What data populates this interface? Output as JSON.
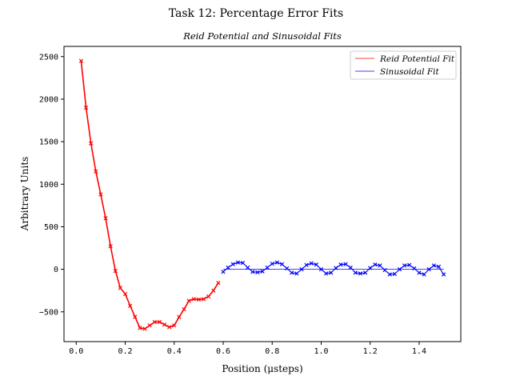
{
  "suptitle": "Task 12: Percentage Error Fits",
  "chart_data": {
    "type": "line",
    "title": "Reid Potential and Sinusoidal Fits",
    "xlabel": "Position (μsteps)",
    "ylabel": "Arbitrary Units",
    "xlim": [
      -0.05,
      1.57
    ],
    "ylim": [
      -850,
      2620
    ],
    "xticks": [
      0.0,
      0.2,
      0.4,
      0.6,
      0.8,
      1.0,
      1.2,
      1.4
    ],
    "xtick_labels": [
      "0.0",
      "0.2",
      "0.4",
      "0.6",
      "0.8",
      "1.0",
      "1.2",
      "1.4"
    ],
    "yticks": [
      -500,
      0,
      500,
      1000,
      1500,
      2000,
      2500
    ],
    "ytick_labels": [
      "−500",
      "0",
      "500",
      "1000",
      "1500",
      "2000",
      "2500"
    ],
    "grid": false,
    "legend_position": "top-right",
    "legend": [
      "Reid Potential Fit",
      "Sinusoidal Fit"
    ],
    "series": [
      {
        "name": "Reid Potential Fit",
        "color": "#ff0000",
        "marker": "x",
        "x": [
          0.02,
          0.04,
          0.06,
          0.08,
          0.1,
          0.12,
          0.14,
          0.16,
          0.18,
          0.2,
          0.22,
          0.24,
          0.26,
          0.28,
          0.3,
          0.32,
          0.34,
          0.36,
          0.38,
          0.4,
          0.42,
          0.44,
          0.46,
          0.48,
          0.5,
          0.52,
          0.54,
          0.56,
          0.58
        ],
        "y": [
          2450,
          1900,
          1480,
          1150,
          880,
          600,
          270,
          -20,
          -220,
          -290,
          -430,
          -560,
          -690,
          -700,
          -660,
          -620,
          -620,
          -650,
          -680,
          -660,
          -560,
          -470,
          -370,
          -350,
          -355,
          -350,
          -320,
          -250,
          -160
        ]
      },
      {
        "name": "Sinusoidal Fit",
        "color": "#0000ff",
        "marker": "x",
        "x": [
          0.6,
          0.62,
          0.64,
          0.66,
          0.68,
          0.7,
          0.72,
          0.74,
          0.76,
          0.78,
          0.8,
          0.82,
          0.84,
          0.86,
          0.88,
          0.9,
          0.92,
          0.94,
          0.96,
          0.98,
          1.0,
          1.02,
          1.04,
          1.06,
          1.08,
          1.1,
          1.12,
          1.14,
          1.16,
          1.18,
          1.2,
          1.22,
          1.24,
          1.26,
          1.28,
          1.3,
          1.32,
          1.34,
          1.36,
          1.38,
          1.4,
          1.42,
          1.44,
          1.46,
          1.48,
          1.5
        ],
        "y": [
          -30,
          20,
          60,
          80,
          75,
          20,
          -30,
          -35,
          -25,
          20,
          65,
          80,
          60,
          10,
          -40,
          -50,
          0,
          50,
          70,
          55,
          0,
          -50,
          -40,
          15,
          55,
          60,
          20,
          -40,
          -50,
          -40,
          15,
          55,
          45,
          -10,
          -60,
          -55,
          0,
          45,
          50,
          10,
          -40,
          -60,
          0,
          45,
          30,
          -60
        ],
        "fit_line_y": 0
      }
    ]
  }
}
